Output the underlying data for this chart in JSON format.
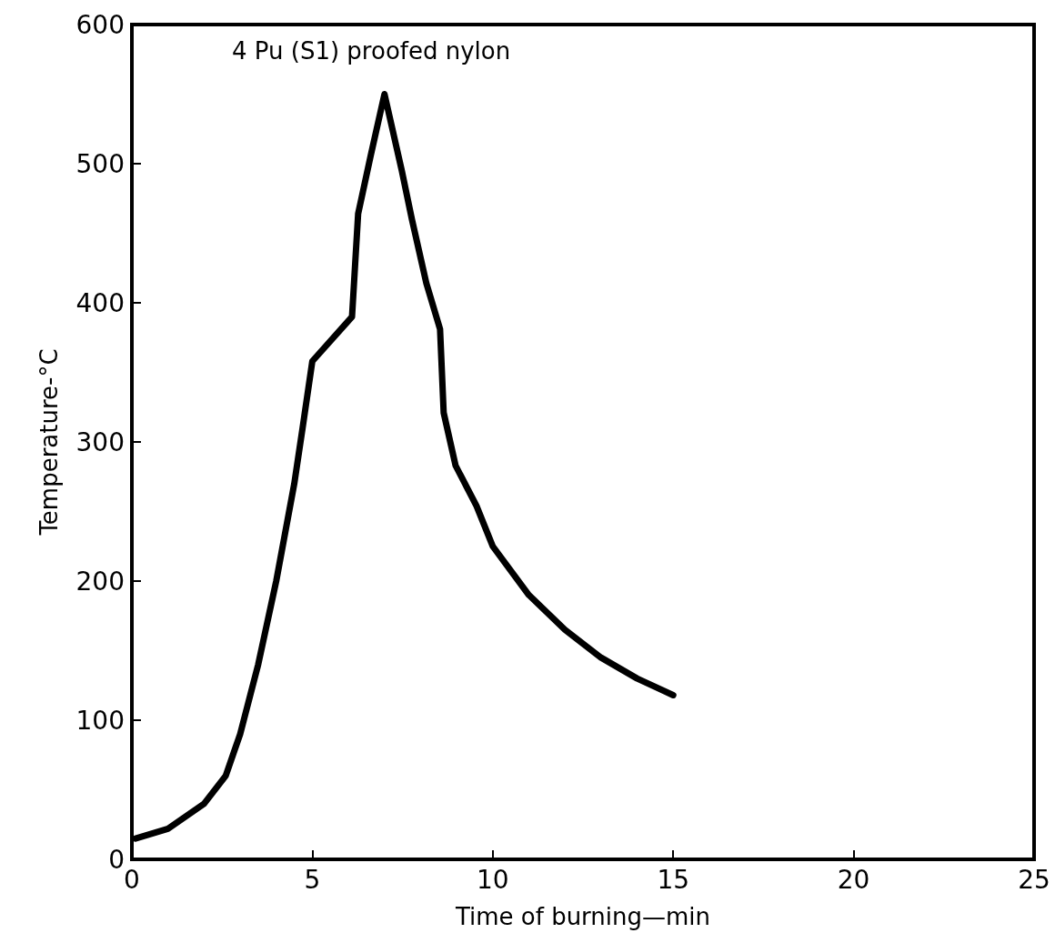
{
  "chart_data": {
    "type": "line",
    "title": "4 Pu (S1) proofed nylon",
    "xlabel": "Time of burning—min",
    "ylabel": "Temperature-°C",
    "xlim": [
      0,
      25
    ],
    "xticks": [
      0,
      5,
      10,
      15,
      20,
      25
    ],
    "ylim": [
      0,
      600
    ],
    "yticks": [
      0,
      100,
      200,
      300,
      400,
      500,
      600
    ],
    "grid": false,
    "marker": "none",
    "line_style": "solid",
    "series": [
      {
        "color": "#000000",
        "x": [
          0.1,
          1,
          2,
          2.6,
          3,
          3.5,
          4,
          4.5,
          4.73,
          5,
          6.1,
          6.27,
          6.62,
          7,
          7.48,
          7.76,
          8.16,
          8.54,
          8.64,
          8.97,
          9.55,
          10,
          11,
          12,
          13,
          14,
          15
        ],
        "values": [
          15,
          22,
          40,
          60,
          90,
          140,
          200,
          270,
          310,
          358,
          390,
          464,
          506,
          550,
          495,
          460,
          414,
          381,
          321,
          283,
          254,
          225,
          190,
          165,
          145,
          130,
          118
        ]
      }
    ]
  }
}
